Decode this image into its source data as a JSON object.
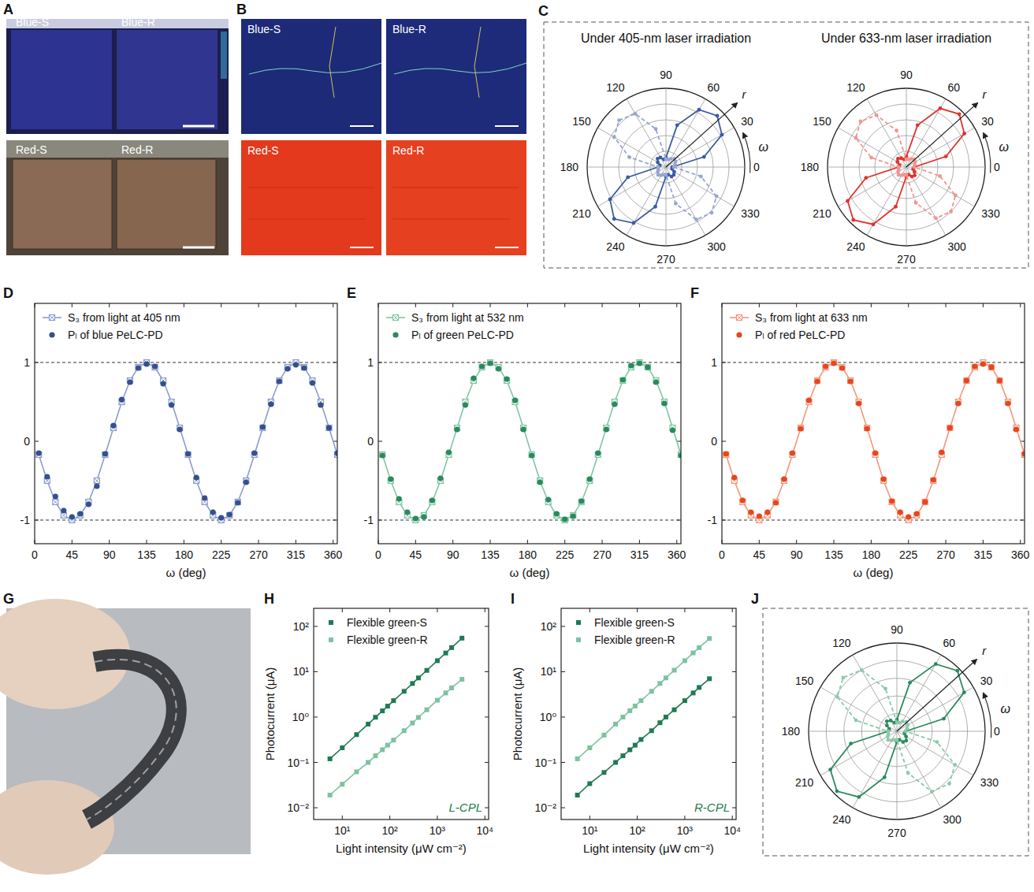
{
  "photos": [
    {
      "panel": "A",
      "labels": [
        "Blue-S",
        "Blue-R",
        "Red-S",
        "Red-R"
      ]
    },
    {
      "panel": "B",
      "labels": [
        "Blue-S",
        "Blue-R",
        "Red-S",
        "Red-R"
      ]
    },
    {
      "panel": "G"
    }
  ],
  "chart_data": [
    {
      "type": "polar",
      "panel": "C",
      "title": "Under 405-nm laser irradiation",
      "xlabel": "ω",
      "ylabel": "r",
      "x": [
        0,
        15,
        30,
        45,
        60,
        75,
        90,
        105,
        120,
        135,
        150,
        165,
        180,
        195,
        210,
        225,
        240,
        255,
        270,
        285,
        300,
        315,
        330,
        345
      ],
      "xlim": [
        0,
        360
      ],
      "xticks": [
        0,
        30,
        60,
        90,
        120,
        150,
        180,
        210,
        240,
        270,
        300,
        330
      ],
      "ylim": [
        0,
        1
      ],
      "yticks": [
        0.2,
        0.4,
        0.6,
        0.8,
        1
      ],
      "tick_labels": "x",
      "series": [
        {
          "color": "#3b5ba5",
          "line_style": "solid",
          "marker": "circle",
          "values": [
            0.08,
            0.5,
            0.82,
            0.92,
            0.84,
            0.55,
            0.12,
            0.1,
            0.14,
            0.15,
            0.12,
            0.08,
            0.1,
            0.5,
            0.82,
            0.93,
            0.82,
            0.52,
            0.12,
            0.1,
            0.14,
            0.14,
            0.12,
            0.08
          ]
        },
        {
          "color": "#95a6cf",
          "line_style": "dashed",
          "marker": "circle",
          "values": [
            0.1,
            0.12,
            0.14,
            0.15,
            0.12,
            0.1,
            0.1,
            0.5,
            0.78,
            0.84,
            0.76,
            0.48,
            0.1,
            0.1,
            0.12,
            0.14,
            0.12,
            0.1,
            0.1,
            0.48,
            0.77,
            0.82,
            0.74,
            0.46
          ]
        }
      ]
    },
    {
      "type": "polar",
      "title": "Under 633-nm laser irradiation",
      "xlabel": "ω",
      "ylabel": "r",
      "x": [
        0,
        15,
        30,
        45,
        60,
        75,
        90,
        105,
        120,
        135,
        150,
        165,
        180,
        195,
        210,
        225,
        240,
        255,
        270,
        285,
        300,
        315,
        330,
        345
      ],
      "xlim": [
        0,
        360
      ],
      "xticks": [
        0,
        30,
        60,
        90,
        120,
        150,
        180,
        210,
        240,
        270,
        300,
        330
      ],
      "ylim": [
        0,
        1
      ],
      "yticks": [
        0.2,
        0.4,
        0.6,
        0.8,
        1
      ],
      "tick_labels": "x",
      "series": [
        {
          "color": "#e2322b",
          "line_style": "solid",
          "marker": "circle",
          "values": [
            0.1,
            0.52,
            0.85,
            0.95,
            0.86,
            0.55,
            0.13,
            0.1,
            0.13,
            0.15,
            0.13,
            0.09,
            0.1,
            0.53,
            0.86,
            0.95,
            0.84,
            0.52,
            0.12,
            0.1,
            0.14,
            0.15,
            0.12,
            0.09
          ]
        },
        {
          "color": "#f19590",
          "line_style": "dashed",
          "marker": "circle",
          "values": [
            0.1,
            0.11,
            0.13,
            0.14,
            0.12,
            0.1,
            0.1,
            0.48,
            0.76,
            0.82,
            0.74,
            0.46,
            0.1,
            0.1,
            0.12,
            0.14,
            0.12,
            0.1,
            0.1,
            0.47,
            0.75,
            0.8,
            0.72,
            0.44
          ]
        }
      ]
    },
    {
      "type": "line",
      "panel": "D",
      "xlabel": "ω (deg)",
      "x": [
        5,
        15,
        25,
        35,
        45,
        55,
        65,
        75,
        85,
        95,
        105,
        115,
        125,
        135,
        145,
        155,
        165,
        175,
        185,
        195,
        205,
        215,
        225,
        235,
        245,
        255,
        265,
        275,
        285,
        295,
        305,
        315,
        325,
        335,
        345,
        355,
        365
      ],
      "xlim": [
        0,
        365
      ],
      "xticks": [
        0,
        45,
        90,
        135,
        180,
        225,
        270,
        315,
        360
      ],
      "ylim": [
        -1.3,
        1.75
      ],
      "yticks": [
        -1,
        0,
        1
      ],
      "hlines": [
        -1,
        1
      ],
      "legend": "upper left",
      "series": [
        {
          "name": "S₃ from light at 405 nm",
          "color": "#8b9dca",
          "line_style": "solid",
          "marker": "crossed-square",
          "values": [
            -0.17,
            -0.5,
            -0.77,
            -0.94,
            -1,
            -0.94,
            -0.77,
            -0.5,
            -0.17,
            0.17,
            0.5,
            0.77,
            0.94,
            1,
            0.94,
            0.77,
            0.5,
            0.17,
            -0.17,
            -0.5,
            -0.77,
            -0.94,
            -1,
            -0.94,
            -0.77,
            -0.5,
            -0.17,
            0.17,
            0.5,
            0.77,
            0.94,
            1,
            0.94,
            0.77,
            0.5,
            0.17,
            -0.17
          ]
        },
        {
          "name": "Pₗ of blue PeLC-PD",
          "color": "#34508f",
          "line_style": "none",
          "marker": "circle",
          "values": [
            -0.15,
            -0.45,
            -0.7,
            -0.88,
            -0.96,
            -0.92,
            -0.8,
            -0.57,
            -0.16,
            0.2,
            0.53,
            0.75,
            0.93,
            0.98,
            0.95,
            0.73,
            0.46,
            0.15,
            -0.16,
            -0.46,
            -0.72,
            -0.9,
            -0.97,
            -0.93,
            -0.78,
            -0.52,
            -0.15,
            0.18,
            0.47,
            0.76,
            0.92,
            0.97,
            0.93,
            0.74,
            0.46,
            0.17,
            -0.15
          ]
        }
      ]
    },
    {
      "type": "line",
      "panel": "E",
      "xlabel": "ω (deg)",
      "x": [
        5,
        15,
        25,
        35,
        45,
        55,
        65,
        75,
        85,
        95,
        105,
        115,
        125,
        135,
        145,
        155,
        165,
        175,
        185,
        195,
        205,
        215,
        225,
        235,
        245,
        255,
        265,
        275,
        285,
        295,
        305,
        315,
        325,
        335,
        345,
        355,
        365
      ],
      "xlim": [
        0,
        365
      ],
      "xticks": [
        0,
        45,
        90,
        135,
        180,
        225,
        270,
        315,
        360
      ],
      "ylim": [
        -1.3,
        1.75
      ],
      "yticks": [
        -1,
        0,
        1
      ],
      "hlines": [
        -1,
        1
      ],
      "legend": "upper left",
      "series": [
        {
          "name": "S₃ from light at 532 nm",
          "color": "#7fc6a4",
          "line_style": "solid",
          "marker": "crossed-square",
          "values": [
            -0.17,
            -0.5,
            -0.77,
            -0.94,
            -1,
            -0.94,
            -0.77,
            -0.5,
            -0.17,
            0.17,
            0.5,
            0.77,
            0.94,
            1,
            0.94,
            0.77,
            0.5,
            0.17,
            -0.17,
            -0.5,
            -0.77,
            -0.94,
            -1,
            -0.94,
            -0.77,
            -0.5,
            -0.17,
            0.17,
            0.5,
            0.77,
            0.94,
            1,
            0.94,
            0.77,
            0.5,
            0.17,
            -0.17
          ]
        },
        {
          "name": "Pₗ of green PeLC-PD",
          "color": "#2a8a5e",
          "line_style": "none",
          "marker": "circle",
          "values": [
            -0.18,
            -0.48,
            -0.73,
            -0.9,
            -0.98,
            -0.96,
            -0.75,
            -0.47,
            -0.14,
            0.15,
            0.46,
            0.8,
            0.95,
            0.99,
            0.92,
            0.79,
            0.52,
            0.15,
            -0.18,
            -0.52,
            -0.74,
            -0.92,
            -0.99,
            -0.95,
            -0.76,
            -0.48,
            -0.15,
            0.15,
            0.47,
            0.78,
            0.96,
            0.99,
            0.94,
            0.75,
            0.48,
            0.14,
            -0.18
          ]
        }
      ]
    },
    {
      "type": "line",
      "panel": "F",
      "xlabel": "ω (deg)",
      "x": [
        5,
        15,
        25,
        35,
        45,
        55,
        65,
        75,
        85,
        95,
        105,
        115,
        125,
        135,
        145,
        155,
        165,
        175,
        185,
        195,
        205,
        215,
        225,
        235,
        245,
        255,
        265,
        275,
        285,
        295,
        305,
        315,
        325,
        335,
        345,
        355,
        365
      ],
      "xlim": [
        0,
        365
      ],
      "xticks": [
        0,
        45,
        90,
        135,
        180,
        225,
        270,
        315,
        360
      ],
      "ylim": [
        -1.3,
        1.75
      ],
      "yticks": [
        -1,
        0,
        1
      ],
      "hlines": [
        -1,
        1
      ],
      "legend": "upper left",
      "series": [
        {
          "name": "S₃ from light at 633 nm",
          "color": "#f2977b",
          "line_style": "solid",
          "marker": "crossed-square",
          "values": [
            -0.17,
            -0.5,
            -0.77,
            -0.94,
            -1,
            -0.94,
            -0.77,
            -0.5,
            -0.17,
            0.17,
            0.5,
            0.77,
            0.94,
            1,
            0.94,
            0.77,
            0.5,
            0.17,
            -0.17,
            -0.5,
            -0.77,
            -0.94,
            -1,
            -0.94,
            -0.77,
            -0.5,
            -0.17,
            0.17,
            0.5,
            0.77,
            0.94,
            1,
            0.94,
            0.77,
            0.5,
            0.17,
            -0.17
          ]
        },
        {
          "name": "Pₗ of red PeLC-PD",
          "color": "#e8461e",
          "line_style": "none",
          "marker": "circle",
          "values": [
            -0.16,
            -0.46,
            -0.75,
            -0.9,
            -0.95,
            -0.9,
            -0.78,
            -0.48,
            -0.15,
            0.16,
            0.52,
            0.76,
            0.95,
            0.99,
            0.93,
            0.76,
            0.48,
            0.16,
            -0.15,
            -0.48,
            -0.76,
            -0.9,
            -0.96,
            -0.92,
            -0.77,
            -0.49,
            -0.14,
            0.17,
            0.48,
            0.77,
            0.95,
            0.98,
            0.94,
            0.77,
            0.48,
            0.15,
            -0.16
          ]
        }
      ]
    },
    {
      "type": "line",
      "panel": "H",
      "log": true,
      "xlabel": "Light intensity (μW cm⁻²)",
      "ylabel": "Photocurrent (μA)",
      "annotation": "L-CPL",
      "x": [
        5.5,
        10,
        20,
        35,
        50,
        70,
        90,
        120,
        200,
        300,
        400,
        600,
        1000,
        1500,
        2000,
        3300
      ],
      "xlim": [
        2.5,
        12000
      ],
      "xticks": [
        {
          "value": 10,
          "label": "10¹"
        },
        {
          "value": 100,
          "label": "10²"
        },
        {
          "value": 1000,
          "label": "10³"
        },
        {
          "value": 10000,
          "label": "10⁴"
        }
      ],
      "ylim": [
        0.0055,
        250
      ],
      "yticks": [
        {
          "value": 0.01,
          "label": "10⁻²"
        },
        {
          "value": 0.1,
          "label": "10⁻¹"
        },
        {
          "value": 1,
          "label": "10⁰"
        },
        {
          "value": 10,
          "label": "10¹"
        },
        {
          "value": 100,
          "label": "10²"
        }
      ],
      "legend": "upper left",
      "series": [
        {
          "name": "Flexible green-S",
          "color": "#1f7a52",
          "line_style": "solid",
          "marker": "square",
          "values": [
            0.12,
            0.21,
            0.41,
            0.7,
            0.99,
            1.37,
            1.74,
            2.3,
            3.7,
            5.5,
            7.3,
            10.7,
            17.5,
            25.8,
            34,
            55
          ]
        },
        {
          "name": "Flexible green-R",
          "color": "#7cc3a0",
          "line_style": "solid",
          "marker": "square",
          "values": [
            0.019,
            0.033,
            0.062,
            0.1,
            0.14,
            0.19,
            0.24,
            0.31,
            0.5,
            0.74,
            0.98,
            1.45,
            2.35,
            3.4,
            4.4,
            6.8
          ]
        }
      ]
    },
    {
      "type": "line",
      "panel": "I",
      "log": true,
      "xlabel": "Light intensity (μW cm⁻²)",
      "ylabel": "Photocurrent (μA)",
      "annotation": "R-CPL",
      "x": [
        5.5,
        10,
        20,
        35,
        50,
        70,
        90,
        120,
        200,
        300,
        400,
        600,
        1000,
        1500,
        2000,
        3300
      ],
      "xlim": [
        2.5,
        12000
      ],
      "xticks": [
        {
          "value": 10,
          "label": "10¹"
        },
        {
          "value": 100,
          "label": "10²"
        },
        {
          "value": 1000,
          "label": "10³"
        },
        {
          "value": 10000,
          "label": "10⁴"
        }
      ],
      "ylim": [
        0.0055,
        250
      ],
      "yticks": [
        {
          "value": 0.01,
          "label": "10⁻²"
        },
        {
          "value": 0.1,
          "label": "10⁻¹"
        },
        {
          "value": 1,
          "label": "10⁰"
        },
        {
          "value": 10,
          "label": "10¹"
        },
        {
          "value": 100,
          "label": "10²"
        }
      ],
      "legend": "upper left",
      "series": [
        {
          "name": "Flexible green-S",
          "color": "#1f7a52",
          "line_style": "solid",
          "marker": "square",
          "values": [
            0.019,
            0.034,
            0.06,
            0.1,
            0.14,
            0.19,
            0.24,
            0.32,
            0.5,
            0.75,
            1,
            1.45,
            2.3,
            3.4,
            4.5,
            7
          ]
        },
        {
          "name": "Flexible green-R",
          "color": "#7cc3a0",
          "line_style": "solid",
          "marker": "square",
          "values": [
            0.12,
            0.21,
            0.4,
            0.7,
            1,
            1.38,
            1.75,
            2.3,
            3.7,
            5.5,
            7.3,
            10.8,
            17.5,
            26,
            34,
            54
          ]
        }
      ]
    },
    {
      "type": "polar",
      "panel": "J",
      "xlabel": "ω",
      "ylabel": "r",
      "x": [
        0,
        15,
        30,
        45,
        60,
        75,
        90,
        105,
        120,
        135,
        150,
        165,
        180,
        195,
        210,
        225,
        240,
        255,
        270,
        285,
        300,
        315,
        330,
        345
      ],
      "xlim": [
        0,
        360
      ],
      "xticks": [
        0,
        30,
        60,
        90,
        120,
        150,
        180,
        210,
        240,
        270,
        300,
        330
      ],
      "ylim": [
        0,
        1
      ],
      "yticks": [
        0.2,
        0.4,
        0.6,
        0.8,
        1
      ],
      "tick_labels": "x",
      "series": [
        {
          "color": "#2a8a5e",
          "line_style": "solid",
          "marker": "circle",
          "values": [
            0.1,
            0.55,
            0.88,
            0.97,
            0.88,
            0.57,
            0.13,
            0.1,
            0.14,
            0.16,
            0.13,
            0.09,
            0.1,
            0.54,
            0.87,
            0.96,
            0.86,
            0.54,
            0.12,
            0.1,
            0.14,
            0.15,
            0.12,
            0.09
          ]
        },
        {
          "color": "#8cc8aa",
          "line_style": "dashed",
          "marker": "circle",
          "values": [
            0.1,
            0.12,
            0.14,
            0.15,
            0.13,
            0.1,
            0.1,
            0.5,
            0.8,
            0.86,
            0.78,
            0.48,
            0.1,
            0.1,
            0.12,
            0.14,
            0.12,
            0.1,
            0.1,
            0.49,
            0.79,
            0.84,
            0.76,
            0.47
          ]
        }
      ]
    }
  ]
}
